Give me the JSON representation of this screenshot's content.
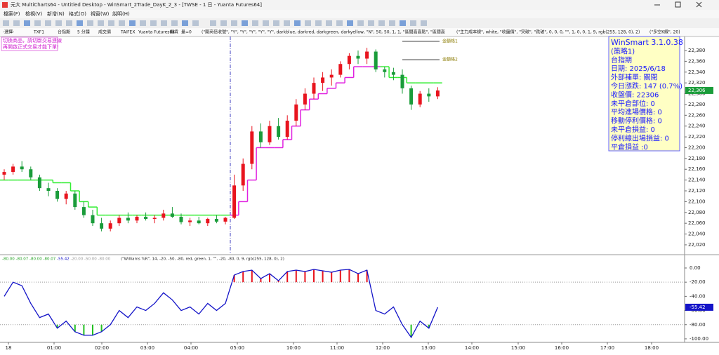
{
  "window": {
    "title": "元大 MultiCharts64 - Untitled Desktop - WinSmart_2Trade_DayK_2_3 - [TWSE - 1 日 - Yuanta Futures64]"
  },
  "menu": [
    "檔案(F)",
    "檢視(V)",
    "新增(N)",
    "格式(O)",
    "視窗(W)",
    "說明(H)"
  ],
  "chart_header": [
    "-選擇-",
    "TXF1",
    "台指期",
    "5 分鐘",
    "成交價",
    "TAIFEX",
    "Yuanta Futures64",
    "期貨",
    "量=0",
    "(\"開商倍收號\", \"Y\", \"Y\", \"Y\", \"Y\", \"Y\", darkblue, darkred, darkgreen, darkyellow, \"N\", 50, 50, 1, 1, \"區間高高點\", \"區間高",
    "(\"主力成本線\", white, \"收盤價\", \"突破\", \"跌破\", 0, 0, 0, \"\", 1, 0, 0, 1, 9, rgb(255, 128, 0), 2)",
    "(\"多空K線\", 20)"
  ],
  "notice": [
    "切換商品，請切斷交易連線",
    "再開啟正式交易才能下單!"
  ],
  "price_chart": {
    "type": "candlestick",
    "open": [
      22150,
      22155,
      22165,
      22160,
      22145,
      22125,
      22120,
      22105,
      22115,
      22090,
      22075,
      22060,
      22050,
      22060,
      22070,
      22065,
      22072,
      22068,
      22070,
      22078,
      22072,
      22062,
      22065,
      22060,
      22068,
      22063,
      22070,
      22130,
      22170,
      22230,
      22210,
      22240,
      22220,
      22250,
      22280,
      22300,
      22320,
      22330,
      22335,
      22355,
      22370,
      22365,
      22378,
      22345,
      22340,
      22335,
      22310,
      22280,
      22300,
      22295
    ],
    "high": [
      22160,
      22170,
      22175,
      22165,
      22150,
      22135,
      22125,
      22120,
      22120,
      22100,
      22085,
      22070,
      22065,
      22075,
      22080,
      22075,
      22080,
      22075,
      22085,
      22090,
      22078,
      22070,
      22072,
      22070,
      22075,
      22072,
      22150,
      22180,
      22240,
      22245,
      22250,
      22255,
      22260,
      22290,
      22310,
      22330,
      22340,
      22345,
      22360,
      22375,
      22380,
      22385,
      22382,
      22350,
      22348,
      22345,
      22315,
      22305,
      22310,
      22312
    ],
    "low": [
      22140,
      22150,
      22155,
      22140,
      22120,
      22110,
      22100,
      22095,
      22085,
      22070,
      22055,
      22045,
      22045,
      22055,
      22060,
      22060,
      22065,
      22060,
      22065,
      22070,
      22058,
      22055,
      22058,
      22055,
      22060,
      22058,
      22068,
      22120,
      22160,
      22200,
      22205,
      22215,
      22215,
      22240,
      22270,
      22290,
      22305,
      22315,
      22330,
      22345,
      22355,
      22355,
      22340,
      22330,
      22325,
      22300,
      22270,
      22275,
      22285,
      22290
    ],
    "close": [
      22155,
      22165,
      22160,
      22145,
      22125,
      22120,
      22105,
      22115,
      22090,
      22075,
      22060,
      22050,
      22060,
      22070,
      22065,
      22072,
      22068,
      22070,
      22078,
      22072,
      22062,
      22065,
      22060,
      22068,
      22063,
      22070,
      22130,
      22170,
      22230,
      22210,
      22240,
      22220,
      22250,
      22280,
      22300,
      22320,
      22330,
      22335,
      22355,
      22370,
      22365,
      22378,
      22345,
      22340,
      22335,
      22310,
      22280,
      22300,
      22295,
      22306
    ],
    "up_color": "#e8141e",
    "down_color": "#1a9c3a",
    "stops": [
      {
        "color": "#33ee33",
        "values": [
          22140,
          22140,
          22140,
          22140,
          22140,
          22140,
          22135,
          22135,
          22120,
          22100,
          22090,
          22075,
          22075,
          22075,
          22075,
          22075,
          22075,
          22075,
          22075,
          22075,
          22075,
          22075,
          22075,
          22075,
          22075,
          22075,
          null,
          null,
          null,
          null,
          null,
          null,
          null,
          null,
          null,
          null,
          null,
          null,
          null,
          null,
          null,
          null,
          null,
          22350,
          22330,
          22330,
          22320,
          22320,
          22320,
          22320
        ]
      },
      {
        "color": "#e020e0",
        "values": [
          null,
          null,
          null,
          null,
          null,
          null,
          null,
          null,
          null,
          null,
          null,
          null,
          null,
          null,
          null,
          null,
          null,
          null,
          null,
          null,
          null,
          null,
          null,
          null,
          null,
          null,
          22075,
          22100,
          22140,
          22200,
          22200,
          22200,
          22215,
          22240,
          22270,
          22290,
          22300,
          22310,
          22320,
          22330,
          22350,
          22350,
          22350,
          null,
          null,
          null,
          null,
          null,
          null,
          null
        ]
      }
    ],
    "ref_lines": [
      {
        "label": "金額格1",
        "value": 22397,
        "color": "#7a7a7a"
      },
      {
        "label": "金額格2",
        "value": 22363,
        "color": "#7a7a7a"
      }
    ],
    "ylim": [
      22005,
      22400
    ],
    "yticks": [
      {
        "value": 22020,
        "label": "22,020"
      },
      {
        "value": 22040,
        "label": "22,040"
      },
      {
        "value": 22060,
        "label": "22,060"
      },
      {
        "value": 22080,
        "label": "22,080"
      },
      {
        "value": 22100,
        "label": "22,100"
      },
      {
        "value": 22120,
        "label": "22,120"
      },
      {
        "value": 22140,
        "label": "22,140"
      },
      {
        "value": 22160,
        "label": "22,160"
      },
      {
        "value": 22180,
        "label": "22,180"
      },
      {
        "value": 22200,
        "label": "22,200"
      },
      {
        "value": 22220,
        "label": "22,220"
      },
      {
        "value": 22240,
        "label": "22,240"
      },
      {
        "value": 22260,
        "label": "22,260"
      },
      {
        "value": 22280,
        "label": "22,280"
      },
      {
        "value": 22300,
        "label": "22,300"
      },
      {
        "value": 22320,
        "label": "22,320"
      },
      {
        "value": 22340,
        "label": "22,340"
      },
      {
        "value": 22360,
        "label": "22,360"
      },
      {
        "value": 22380,
        "label": "22,380"
      }
    ],
    "last_price": {
      "value": 22306,
      "label": "22,306",
      "color": "#1a9c3a"
    }
  },
  "info_box": [
    "WinSmart 3.1.0.38",
    "(策略1)",
    "台指期",
    "日期: 2025/6/18",
    "外部補單: 關閉",
    "今日漲跌: 147 (0.7%)",
    "收盤價: 22306",
    "未平倉部位: 0",
    "平均進場價格: 0",
    "移動停利價格: 0",
    "未平倉損益: 0",
    "停利線出場損益: 0",
    "平倉損益 :0"
  ],
  "indicator": {
    "type": "line",
    "header_values": [
      "-80.00",
      "-80.07",
      "-80.00",
      "-80.07",
      "-55.42",
      "-20.00",
      "-50.00",
      "-80.00"
    ],
    "study": "(\"Williams %R\", 14, -20, -50, -80, red, green, 1, \"\", -20, -80, 0, 9, rgb(255, 128, 0), 2)",
    "values": [
      -40,
      -20,
      -25,
      -50,
      -70,
      -65,
      -85,
      -75,
      -90,
      -95,
      -95,
      -90,
      -80,
      -60,
      -70,
      -55,
      -60,
      -50,
      -35,
      -45,
      -60,
      -55,
      -65,
      -50,
      -60,
      -50,
      -10,
      -5,
      -3,
      -15,
      -8,
      -18,
      -5,
      -3,
      -5,
      -2,
      -4,
      -6,
      -3,
      -2,
      -8,
      -3,
      -60,
      -65,
      -55,
      -80,
      -98,
      -75,
      -85,
      -55.42
    ],
    "color": "#1414c8",
    "upper": -20,
    "lower": -80,
    "upper_color": "#e8141e",
    "lower_color": "#22c022",
    "ylim": [
      -105,
      8
    ],
    "yticks": [
      {
        "value": 0,
        "label": "0.00"
      },
      {
        "value": -20,
        "label": "-20.00"
      },
      {
        "value": -40,
        "label": "-40.00"
      },
      {
        "value": -60,
        "label": "-60.00"
      },
      {
        "value": -80,
        "label": "-80.00"
      },
      {
        "value": -100,
        "label": "-100.00"
      }
    ],
    "last_value": {
      "value": -55.42,
      "label": "-55.42"
    }
  },
  "time_axis": [
    "18",
    "01:00",
    "02:00",
    "03:00",
    "04:00",
    "05:00",
    "10:00",
    "11:00",
    "12:00",
    "13:00",
    "14:00",
    "15:00",
    "16:00",
    "17:00",
    "18:00"
  ]
}
